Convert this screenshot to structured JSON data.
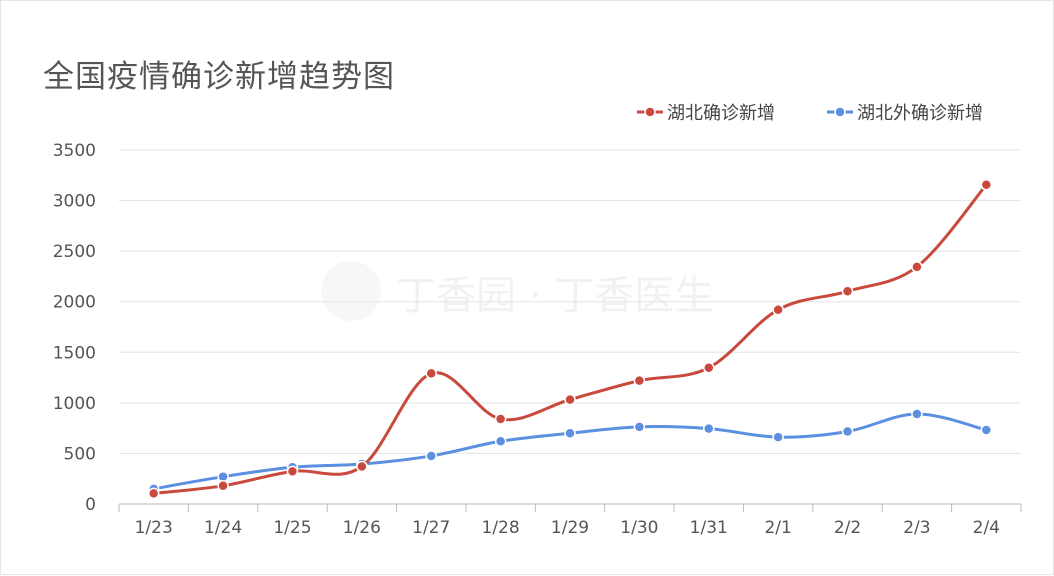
{
  "chart_data": {
    "type": "line",
    "title": "全国疫情确诊新增趋势图",
    "categories": [
      "1/23",
      "1/24",
      "1/25",
      "1/26",
      "1/27",
      "1/28",
      "1/29",
      "1/30",
      "1/31",
      "2/1",
      "2/2",
      "2/3",
      "2/4"
    ],
    "series": [
      {
        "name": "湖北确诊新增",
        "color": "#c9493d",
        "values": [
          105,
          180,
          323,
          371,
          1291,
          840,
          1032,
          1220,
          1347,
          1921,
          2103,
          2345,
          3156
        ]
      },
      {
        "name": "湖北外确诊新增",
        "color": "#5b8fe0",
        "values": [
          150,
          270,
          363,
          395,
          475,
          620,
          700,
          763,
          745,
          661,
          717,
          890,
          732
        ]
      }
    ],
    "yticks": [
      0,
      500,
      1000,
      1500,
      2000,
      2500,
      3000,
      3500
    ],
    "ylim": [
      0,
      3500
    ],
    "grid": true,
    "smooth": true,
    "legend": "top-right",
    "watermark": "丁香园 · 丁香医生"
  }
}
